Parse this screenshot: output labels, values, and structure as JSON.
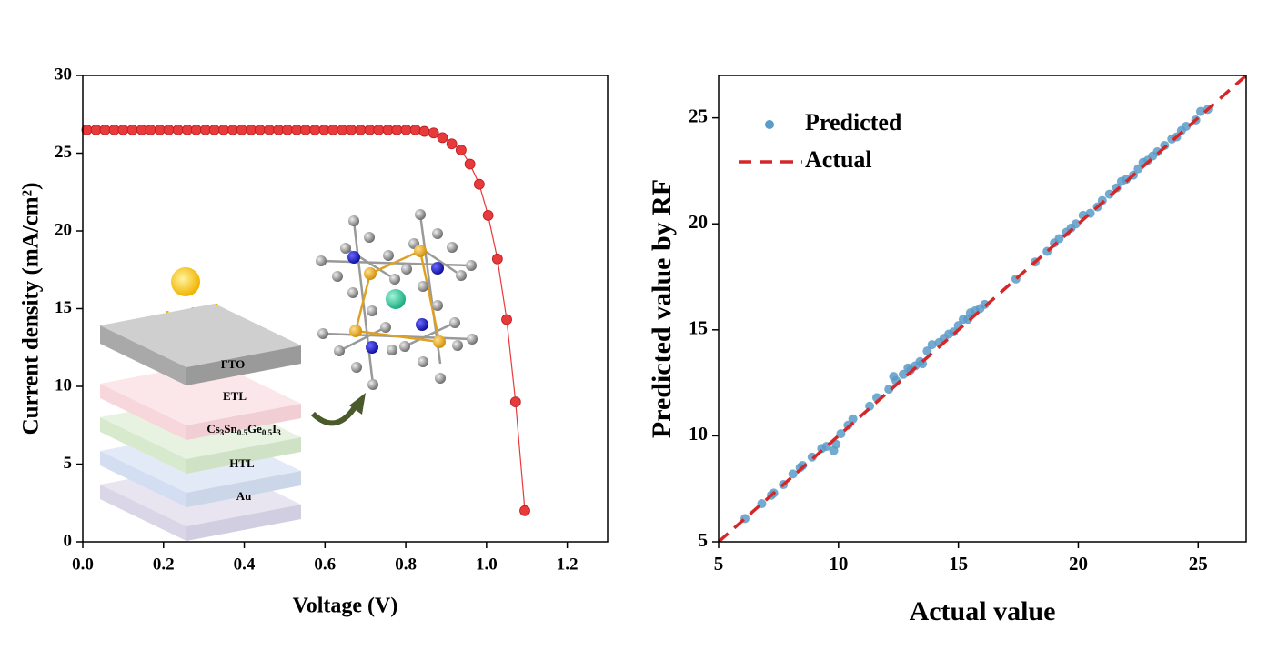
{
  "chart_data": [
    {
      "type": "line",
      "x": [
        0.01,
        0.033,
        0.055,
        0.078,
        0.1,
        0.123,
        0.146,
        0.168,
        0.191,
        0.213,
        0.236,
        0.259,
        0.281,
        0.304,
        0.326,
        0.349,
        0.372,
        0.394,
        0.417,
        0.439,
        0.462,
        0.485,
        0.507,
        0.53,
        0.552,
        0.575,
        0.598,
        0.62,
        0.643,
        0.665,
        0.688,
        0.711,
        0.733,
        0.756,
        0.778,
        0.801,
        0.824,
        0.846,
        0.869,
        0.891,
        0.914,
        0.937,
        0.959,
        0.982,
        1.004,
        1.027,
        1.05,
        1.072,
        1.095
      ],
      "series": [
        {
          "color": "#e8393b",
          "markers": true,
          "values": [
            26.5,
            26.5,
            26.5,
            26.5,
            26.5,
            26.5,
            26.5,
            26.5,
            26.5,
            26.5,
            26.5,
            26.5,
            26.5,
            26.5,
            26.5,
            26.5,
            26.5,
            26.5,
            26.5,
            26.5,
            26.5,
            26.5,
            26.5,
            26.5,
            26.5,
            26.5,
            26.5,
            26.5,
            26.5,
            26.5,
            26.5,
            26.5,
            26.5,
            26.5,
            26.5,
            26.5,
            26.5,
            26.4,
            26.3,
            26.0,
            25.6,
            25.2,
            24.3,
            23.0,
            21.0,
            18.2,
            14.3,
            9.0,
            2.0
          ]
        }
      ],
      "xlim": [
        0,
        1.3
      ],
      "ylim": [
        0,
        30
      ],
      "xticks": [
        {
          "value": 0,
          "label": "0.0"
        },
        0.2,
        0.4,
        0.6,
        0.8,
        {
          "value": 1,
          "label": "1.0"
        },
        1.2
      ],
      "yticks": [
        0,
        5,
        10,
        15,
        20,
        25,
        30
      ],
      "xlabel": "Voltage (V)",
      "ylabel": "Current density (mA/cm²)",
      "inset_labels": [
        "FTO",
        "ETL",
        [
          "Cs",
          "3",
          "Sn",
          "0.5",
          "Ge",
          "0.5",
          "I",
          "3"
        ],
        "HTL",
        "Au"
      ]
    },
    {
      "type": "scatter",
      "series": [
        {
          "name": "Predicted",
          "type": "scatter",
          "color": "#5b9bc8",
          "x": [
            6.1,
            6.8,
            7.2,
            7.3,
            7.7,
            8.1,
            8.4,
            8.5,
            8.9,
            9.3,
            9.5,
            9.8,
            9.9,
            10.1,
            10.4,
            10.6,
            11.3,
            11.6,
            12.1,
            12.3,
            12.4,
            12.7,
            12.9,
            13.0,
            13.2,
            13.4,
            13.5,
            13.7,
            13.9,
            14.2,
            14.4,
            14.6,
            14.8,
            15.0,
            15.2,
            15.4,
            15.5,
            15.7,
            15.9,
            16.1,
            17.4,
            18.2,
            18.7,
            19.0,
            19.2,
            19.5,
            19.7,
            19.9,
            20.2,
            20.5,
            20.8,
            21.0,
            21.3,
            21.6,
            21.8,
            22.0,
            22.3,
            22.5,
            22.7,
            22.9,
            23.1,
            23.3,
            23.6,
            23.9,
            24.1,
            24.3,
            24.5,
            24.9,
            25.1,
            25.4
          ],
          "values": [
            6.1,
            6.8,
            7.2,
            7.3,
            7.7,
            8.2,
            8.5,
            8.6,
            9.0,
            9.4,
            9.5,
            9.3,
            9.6,
            10.1,
            10.5,
            10.8,
            11.4,
            11.8,
            12.2,
            12.8,
            12.6,
            12.9,
            13.2,
            13.1,
            13.3,
            13.5,
            13.4,
            14.0,
            14.3,
            14.4,
            14.6,
            14.8,
            14.9,
            15.2,
            15.5,
            15.5,
            15.8,
            15.9,
            16.0,
            16.2,
            17.4,
            18.2,
            18.7,
            19.1,
            19.3,
            19.6,
            19.8,
            20.0,
            20.4,
            20.5,
            20.8,
            21.1,
            21.4,
            21.7,
            22.0,
            22.1,
            22.3,
            22.6,
            22.9,
            23.0,
            23.2,
            23.4,
            23.7,
            24.0,
            24.1,
            24.4,
            24.6,
            24.9,
            25.3,
            25.4
          ]
        },
        {
          "name": "Actual",
          "type": "line",
          "color": "#d62728",
          "dash": true,
          "x": [
            5,
            27
          ],
          "values": [
            5,
            27
          ]
        }
      ],
      "xlim": [
        5,
        27
      ],
      "ylim": [
        5,
        27
      ],
      "xticks": [
        5,
        10,
        15,
        20,
        25
      ],
      "yticks": [
        5,
        10,
        15,
        20,
        25
      ],
      "xlabel": "Actual value",
      "ylabel": "Predicted value by RF",
      "legend": "upper left"
    }
  ]
}
